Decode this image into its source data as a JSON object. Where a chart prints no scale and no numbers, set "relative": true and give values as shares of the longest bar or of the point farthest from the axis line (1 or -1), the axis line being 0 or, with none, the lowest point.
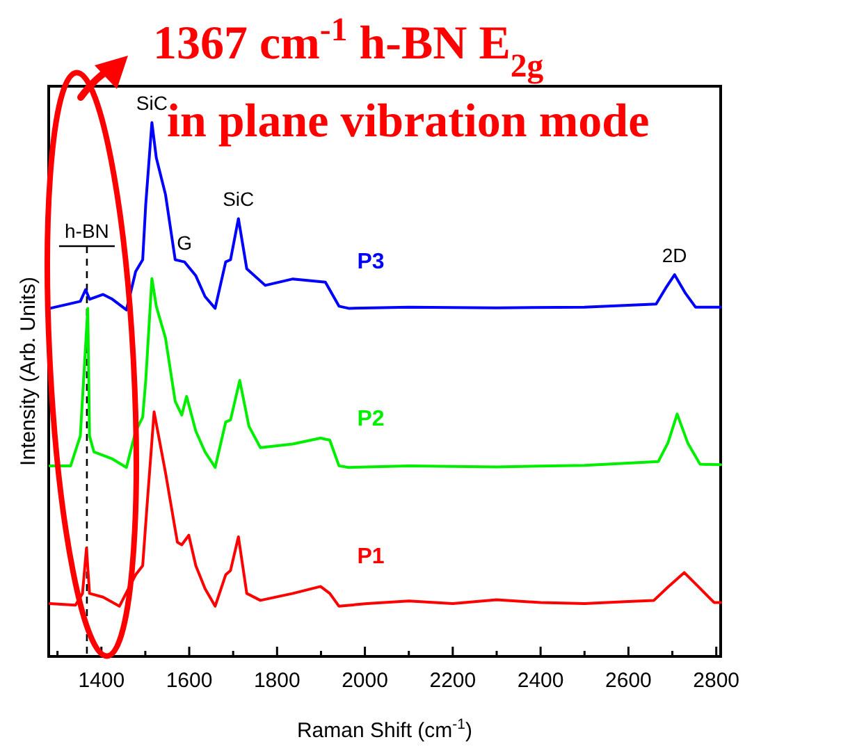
{
  "chart_data": {
    "type": "line",
    "relative": true,
    "xlabel": "Raman Shift (cm$^{-1}$)",
    "ylabel": "Intensity (Arb. Units)",
    "xlim": [
      1280,
      2810
    ],
    "xticks": [
      {
        "value": 1300,
        "label": null
      },
      1400,
      {
        "value": 1500,
        "label": null
      },
      1600,
      {
        "value": 1700,
        "label": null
      },
      1800,
      {
        "value": 1900,
        "label": null
      },
      2000,
      {
        "value": 2100,
        "label": null
      },
      2200,
      {
        "value": 2300,
        "label": null
      },
      2400,
      {
        "value": 2500,
        "label": null
      },
      2600,
      {
        "value": 2700,
        "label": null
      },
      2800
    ],
    "series": [
      {
        "name": "P1",
        "color": "#ff0000",
        "x": [
          1283,
          1341,
          1357,
          1366,
          1373,
          1404,
          1441,
          1478,
          1494,
          1504,
          1520,
          1546,
          1573,
          1583,
          1599,
          1615,
          1636,
          1659,
          1683,
          1694,
          1712,
          1731,
          1762,
          1836,
          1899,
          1920,
          1941,
          2005,
          2100,
          2200,
          2300,
          2400,
          2500,
          2600,
          2658,
          2690,
          2727,
          2760,
          2795,
          2810
        ],
        "values": [
          0.099,
          0.096,
          0.118,
          0.203,
          0.118,
          0.111,
          0.094,
          0.153,
          0.17,
          0.283,
          0.458,
          0.344,
          0.214,
          0.209,
          0.227,
          0.17,
          0.127,
          0.094,
          0.153,
          0.161,
          0.224,
          0.118,
          0.105,
          0.118,
          0.131,
          0.118,
          0.094,
          0.099,
          0.104,
          0.099,
          0.106,
          0.101,
          0.099,
          0.103,
          0.105,
          0.13,
          0.157,
          0.13,
          0.101,
          0.101
        ]
      },
      {
        "name": "P2",
        "color": "#00ee00",
        "x": [
          1283,
          1330,
          1352,
          1369,
          1373,
          1383,
          1425,
          1457,
          1478,
          1494,
          1501,
          1515,
          1525,
          1546,
          1568,
          1583,
          1594,
          1615,
          1636,
          1659,
          1683,
          1694,
          1715,
          1736,
          1762,
          1836,
          1899,
          1920,
          1941,
          1963,
          2100,
          2300,
          2500,
          2668,
          2690,
          2711,
          2735,
          2763,
          2810
        ],
        "values": [
          0.357,
          0.357,
          0.413,
          0.652,
          0.413,
          0.383,
          0.37,
          0.354,
          0.422,
          0.448,
          0.517,
          0.708,
          0.656,
          0.596,
          0.478,
          0.452,
          0.487,
          0.422,
          0.383,
          0.354,
          0.439,
          0.443,
          0.517,
          0.431,
          0.391,
          0.398,
          0.409,
          0.405,
          0.357,
          0.354,
          0.357,
          0.355,
          0.358,
          0.365,
          0.4,
          0.454,
          0.4,
          0.36,
          0.359
        ]
      },
      {
        "name": "P3",
        "color": "#0000ff",
        "x": [
          1283,
          1352,
          1364,
          1373,
          1404,
          1425,
          1457,
          1478,
          1494,
          1501,
          1515,
          1525,
          1546,
          1568,
          1589,
          1615,
          1636,
          1659,
          1683,
          1694,
          1712,
          1731,
          1773,
          1836,
          1910,
          1941,
          1963,
          2100,
          2300,
          2500,
          2663,
          2685,
          2705,
          2730,
          2753,
          2810
        ],
        "values": [
          0.652,
          0.665,
          0.687,
          0.669,
          0.678,
          0.669,
          0.649,
          0.721,
          0.743,
          0.847,
          1.0,
          0.934,
          0.865,
          0.743,
          0.739,
          0.713,
          0.674,
          0.652,
          0.739,
          0.743,
          0.82,
          0.726,
          0.695,
          0.707,
          0.701,
          0.656,
          0.652,
          0.654,
          0.653,
          0.654,
          0.66,
          0.69,
          0.715,
          0.68,
          0.654,
          0.654
        ]
      }
    ],
    "ref_lines": [
      {
        "axis": "x",
        "value": 1367,
        "label": "h-BN",
        "line_style": "dashed",
        "color": "#000000"
      }
    ],
    "annotations": [
      {
        "text": "SiC",
        "x": 1515,
        "y": 1.0
      },
      {
        "text": "G",
        "x": 1589,
        "y": 0.739
      },
      {
        "text": "SiC",
        "x": 1712,
        "y": 0.82
      },
      {
        "text": "2D",
        "x": 2705,
        "y": 0.715
      },
      "1367 cm$^{-1}$ h-BN  E$_{2g}$",
      "in plane vibration mode"
    ]
  }
}
